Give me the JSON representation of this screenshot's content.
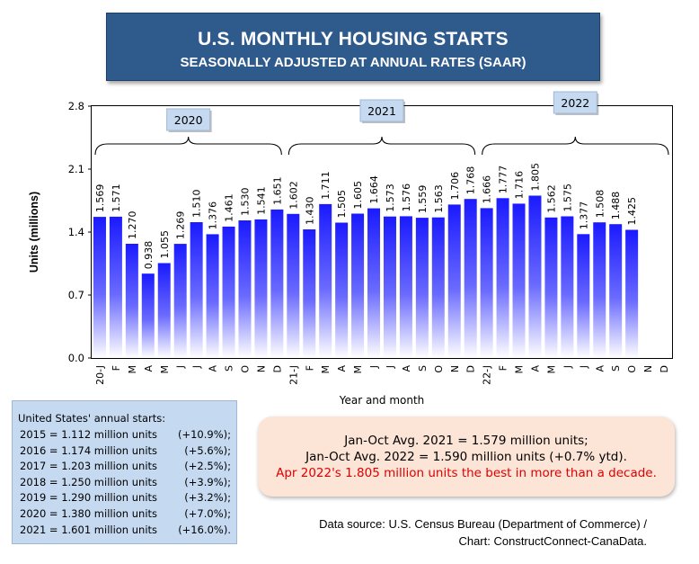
{
  "title": {
    "line1": "U.S. MONTHLY HOUSING STARTS",
    "line2": "SEASONALLY ADJUSTED AT ANNUAL RATES (SAAR)"
  },
  "chart_data": {
    "type": "bar",
    "ylabel": "Units (millions)",
    "xlabel": "Year and month",
    "ylim": [
      0,
      2.8
    ],
    "yticks": [
      "0.0",
      "0.7",
      "1.4",
      "2.1",
      "2.8"
    ],
    "grid": false,
    "categories": [
      "20-J",
      "F",
      "M",
      "A",
      "M",
      "J",
      "J",
      "A",
      "S",
      "O",
      "N",
      "D",
      "21-J",
      "F",
      "M",
      "A",
      "M",
      "J",
      "J",
      "A",
      "S",
      "O",
      "N",
      "D",
      "22-J",
      "F",
      "M",
      "A",
      "M",
      "J",
      "J",
      "A",
      "S",
      "O",
      "N",
      "D"
    ],
    "labels": [
      "1.569",
      "1.571",
      "1.270",
      "0.938",
      "1.055",
      "1.269",
      "1.510",
      "1.376",
      "1.461",
      "1.530",
      "1.541",
      "1.651",
      "1.602",
      "1.430",
      "1.711",
      "1.505",
      "1.605",
      "1.664",
      "1.573",
      "1.576",
      "1.559",
      "1.563",
      "1.706",
      "1.768",
      "1.666",
      "1.777",
      "1.716",
      "1.805",
      "1.562",
      "1.575",
      "1.377",
      "1.508",
      "1.488",
      "1.425",
      null,
      null
    ],
    "values": [
      1.569,
      1.571,
      1.27,
      0.938,
      1.055,
      1.269,
      1.51,
      1.376,
      1.461,
      1.53,
      1.541,
      1.651,
      1.602,
      1.43,
      1.711,
      1.505,
      1.605,
      1.664,
      1.573,
      1.576,
      1.559,
      1.563,
      1.706,
      1.768,
      1.666,
      1.777,
      1.716,
      1.805,
      1.562,
      1.575,
      1.377,
      1.508,
      1.488,
      1.425,
      null,
      null
    ],
    "year_groups": [
      "2020",
      "2021",
      "2022"
    ],
    "bar_color_top": "#1a1aff",
    "bar_color_bottom": "#ffffff"
  },
  "annual": {
    "heading": "United States' annual starts:",
    "rows": [
      {
        "label": "2015 = 1.112 million units",
        "change": "(+10.9%);"
      },
      {
        "label": "2016 = 1.174 million units",
        "change": "(+5.6%);"
      },
      {
        "label": "2017 = 1.203 million units",
        "change": "(+2.5%);"
      },
      {
        "label": "2018 = 1.250 million units",
        "change": "(+3.9%);"
      },
      {
        "label": "2019 = 1.290 million units",
        "change": "(+3.2%);"
      },
      {
        "label": "2020 = 1.380 million units",
        "change": "(+7.0%);"
      },
      {
        "label": "2021 = 1.601 million units",
        "change": "(+16.0%)."
      }
    ]
  },
  "averages": {
    "line1": "Jan-Oct Avg. 2021 = 1.579 million units;",
    "line2": "Jan-Oct Avg. 2022 = 1.590 million units (+0.7% ytd).",
    "line3": "Apr 2022's 1.805 million units the best in more than a decade.",
    "highlight_color": "#e00000"
  },
  "source": {
    "line1": "Data source: U.S. Census Bureau (Department of Commerce) /",
    "line2": "Chart: ConstructConnect-CanaData."
  }
}
